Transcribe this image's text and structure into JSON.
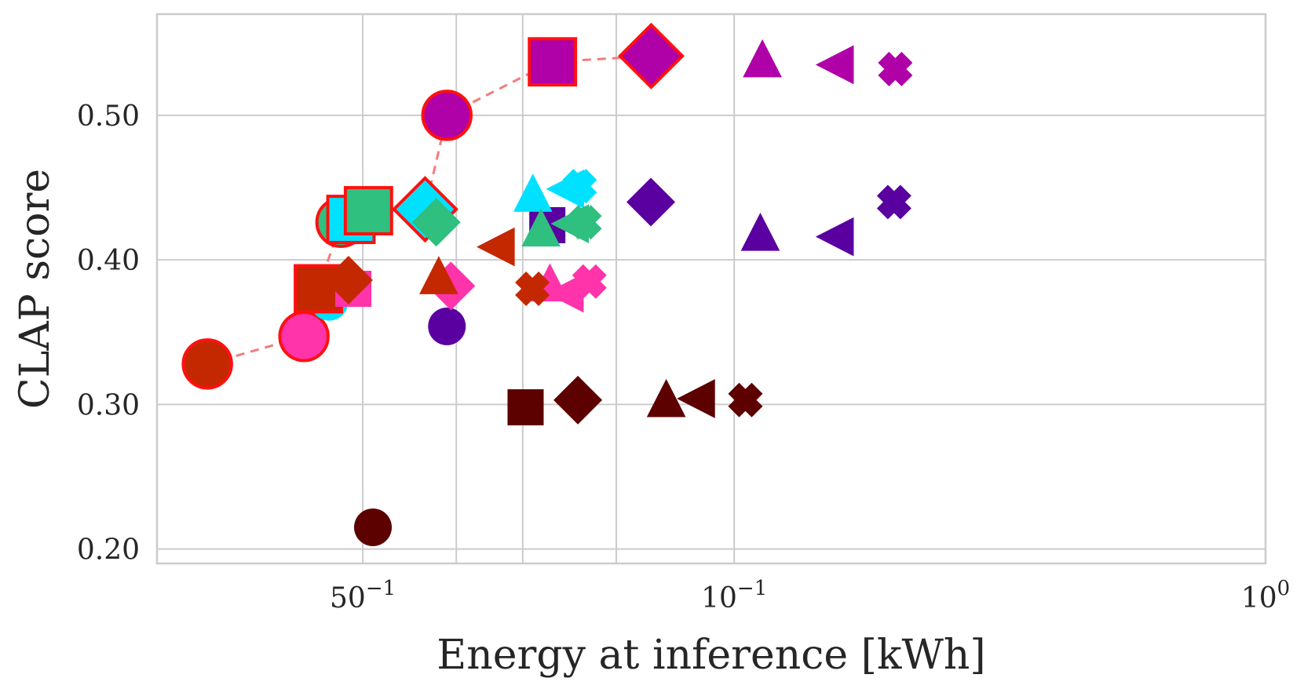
{
  "chart_data": {
    "type": "scatter",
    "xscale": "log",
    "xlabel": "Energy at inference [kWh]",
    "ylabel": "CLAP score",
    "xlim": [
      0.0082,
      1.0
    ],
    "ylim": [
      0.19,
      0.57
    ],
    "grid": true,
    "legend": "none",
    "x_tick_labels": [
      {
        "x": 0.02,
        "base": "50",
        "exp": "−1"
      },
      {
        "x": 0.1,
        "base": "10",
        "exp": "−1"
      },
      {
        "x": 1.0,
        "base": "10",
        "exp": "0"
      }
    ],
    "x_minor_grid": [
      0.03,
      0.04,
      0.06
    ],
    "y_ticks": [
      0.2,
      0.3,
      0.4,
      0.5
    ],
    "y_tick_labels": [
      "0.20",
      "0.30",
      "0.40",
      "0.50"
    ],
    "colors": {
      "darkred": "#5c0000",
      "orange_red": "#c42800",
      "cyan": "#00e1ff",
      "green": "#2fbf7f",
      "pink": "#ff33aa",
      "indigo": "#5a00a0",
      "magenta": "#b000a8",
      "pareto_edge": "#ff1010",
      "frontier_line": "#f47c7c"
    },
    "pareto_front": [
      [
        0.0102,
        0.328
      ],
      [
        0.0155,
        0.347
      ],
      [
        0.0165,
        0.38
      ],
      [
        0.0182,
        0.426
      ],
      [
        0.019,
        0.428
      ],
      [
        0.0205,
        0.434
      ],
      [
        0.0262,
        0.435
      ],
      [
        0.0288,
        0.5
      ],
      [
        0.0455,
        0.537
      ],
      [
        0.0698,
        0.541
      ]
    ],
    "series": [
      {
        "name": "circle",
        "marker": "circle",
        "points": [
          {
            "x": 0.0102,
            "y": 0.328,
            "color": "orange_red",
            "pareto": true
          },
          {
            "x": 0.0155,
            "y": 0.347,
            "color": "pink",
            "pareto": true
          },
          {
            "x": 0.0182,
            "y": 0.426,
            "color": "green",
            "pareto": true
          },
          {
            "x": 0.0173,
            "y": 0.371,
            "color": "cyan",
            "pareto": false
          },
          {
            "x": 0.0288,
            "y": 0.5,
            "color": "magenta",
            "pareto": true
          },
          {
            "x": 0.0288,
            "y": 0.354,
            "color": "indigo",
            "pareto": false
          },
          {
            "x": 0.0209,
            "y": 0.215,
            "color": "darkred",
            "pareto": false
          }
        ]
      },
      {
        "name": "square",
        "marker": "square",
        "points": [
          {
            "x": 0.0165,
            "y": 0.38,
            "color": "orange_red",
            "pareto": true
          },
          {
            "x": 0.019,
            "y": 0.428,
            "color": "cyan",
            "pareto": true
          },
          {
            "x": 0.0205,
            "y": 0.434,
            "color": "green",
            "pareto": true
          },
          {
            "x": 0.0192,
            "y": 0.38,
            "color": "pink",
            "pareto": false
          },
          {
            "x": 0.0445,
            "y": 0.424,
            "color": "indigo",
            "pareto": false
          },
          {
            "x": 0.0455,
            "y": 0.537,
            "color": "magenta",
            "pareto": true
          },
          {
            "x": 0.0405,
            "y": 0.298,
            "color": "darkred",
            "pareto": false
          }
        ]
      },
      {
        "name": "diamond",
        "marker": "diamond",
        "points": [
          {
            "x": 0.0188,
            "y": 0.386,
            "color": "orange_red",
            "pareto": false
          },
          {
            "x": 0.0262,
            "y": 0.435,
            "color": "cyan",
            "pareto": true
          },
          {
            "x": 0.0275,
            "y": 0.426,
            "color": "green",
            "pareto": false
          },
          {
            "x": 0.0293,
            "y": 0.382,
            "color": "pink",
            "pareto": false
          },
          {
            "x": 0.0697,
            "y": 0.44,
            "color": "indigo",
            "pareto": false
          },
          {
            "x": 0.0698,
            "y": 0.541,
            "color": "magenta",
            "pareto": true
          },
          {
            "x": 0.0508,
            "y": 0.303,
            "color": "darkred",
            "pareto": false
          }
        ]
      },
      {
        "name": "triangle",
        "marker": "triangle-up",
        "points": [
          {
            "x": 0.0278,
            "y": 0.388,
            "color": "orange_red",
            "pareto": false
          },
          {
            "x": 0.0418,
            "y": 0.445,
            "color": "cyan",
            "pareto": false
          },
          {
            "x": 0.0433,
            "y": 0.421,
            "color": "green",
            "pareto": false
          },
          {
            "x": 0.045,
            "y": 0.383,
            "color": "pink",
            "pareto": false
          },
          {
            "x": 0.112,
            "y": 0.418,
            "color": "indigo",
            "pareto": false
          },
          {
            "x": 0.113,
            "y": 0.538,
            "color": "magenta",
            "pareto": false
          },
          {
            "x": 0.0745,
            "y": 0.303,
            "color": "darkred",
            "pareto": false
          }
        ]
      },
      {
        "name": "triangle-left",
        "marker": "triangle-left",
        "points": [
          {
            "x": 0.0359,
            "y": 0.409,
            "color": "orange_red",
            "pareto": false
          },
          {
            "x": 0.0485,
            "y": 0.449,
            "color": "cyan",
            "pareto": false
          },
          {
            "x": 0.0495,
            "y": 0.425,
            "color": "green",
            "pareto": false
          },
          {
            "x": 0.0484,
            "y": 0.377,
            "color": "pink",
            "pareto": false
          },
          {
            "x": 0.156,
            "y": 0.416,
            "color": "indigo",
            "pareto": false
          },
          {
            "x": 0.156,
            "y": 0.535,
            "color": "magenta",
            "pareto": false
          },
          {
            "x": 0.0855,
            "y": 0.304,
            "color": "darkred",
            "pareto": false
          }
        ]
      },
      {
        "name": "x",
        "marker": "x",
        "points": [
          {
            "x": 0.0417,
            "y": 0.38,
            "color": "orange_red",
            "pareto": false
          },
          {
            "x": 0.0512,
            "y": 0.451,
            "color": "cyan",
            "pareto": false
          },
          {
            "x": 0.0523,
            "y": 0.426,
            "color": "green",
            "pareto": false
          },
          {
            "x": 0.0534,
            "y": 0.385,
            "color": "pink",
            "pareto": false
          },
          {
            "x": 0.2,
            "y": 0.44,
            "color": "indigo",
            "pareto": false
          },
          {
            "x": 0.201,
            "y": 0.532,
            "color": "magenta",
            "pareto": false
          },
          {
            "x": 0.105,
            "y": 0.303,
            "color": "darkred",
            "pareto": false
          }
        ]
      }
    ]
  }
}
